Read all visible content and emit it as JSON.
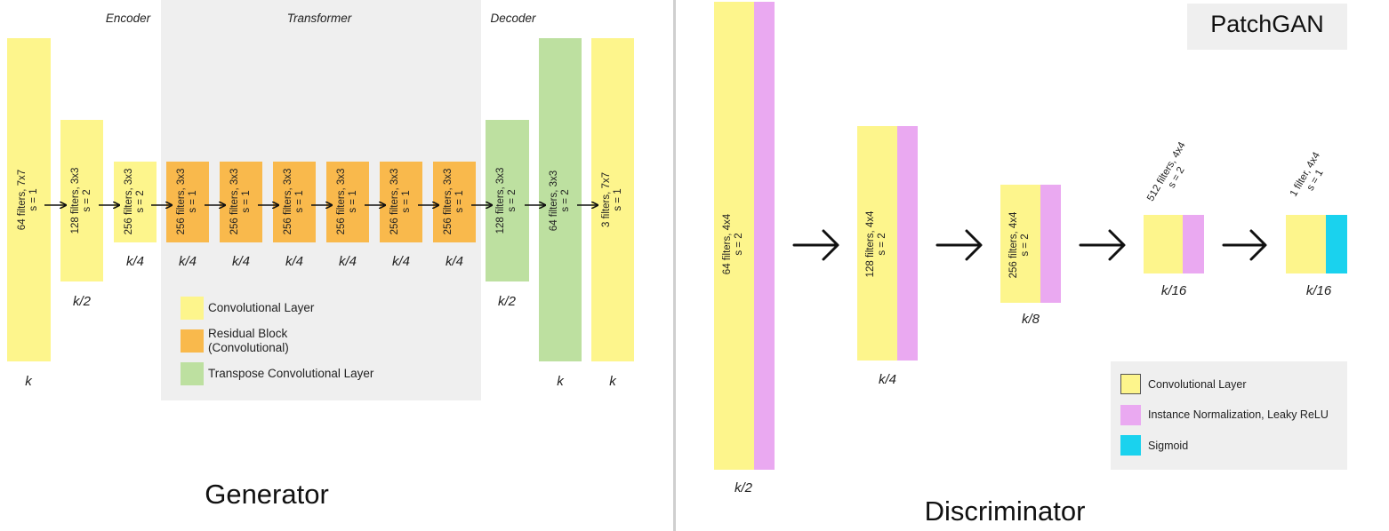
{
  "generator": {
    "title": "Generator",
    "sections": {
      "encoder": "Encoder",
      "transformer": "Transformer",
      "decoder": "Decoder"
    },
    "layers": [
      {
        "label": "64 filters, 7x7\ns = 1",
        "size": "k",
        "type": "conv"
      },
      {
        "label": "128 filters, 3x3\ns = 2",
        "size": "k/2",
        "type": "conv"
      },
      {
        "label": "256 filters, 3x3\ns = 2",
        "size": "k/4",
        "type": "conv"
      },
      {
        "label": "256 filters, 3x3\ns = 1",
        "size": "k/4",
        "type": "residual"
      },
      {
        "label": "256 filters, 3x3\ns = 1",
        "size": "k/4",
        "type": "residual"
      },
      {
        "label": "256 filters, 3x3\ns = 1",
        "size": "k/4",
        "type": "residual"
      },
      {
        "label": "256 filters, 3x3\ns = 1",
        "size": "k/4",
        "type": "residual"
      },
      {
        "label": "256 filters, 3x3\ns = 1",
        "size": "k/4",
        "type": "residual"
      },
      {
        "label": "256 filters, 3x3\ns = 1",
        "size": "k/4",
        "type": "residual"
      },
      {
        "label": "128 filters, 3x3\ns = 2",
        "size": "k/2",
        "type": "transpose"
      },
      {
        "label": "64 filters, 3x3\ns = 2",
        "size": "k",
        "type": "transpose"
      },
      {
        "label": "3 filters, 7x7\ns = 1",
        "size": "k",
        "type": "conv"
      }
    ],
    "legend": [
      {
        "label": "Convolutional Layer",
        "color": "#fdf58c"
      },
      {
        "label": "Residual Block\n(Convolutional)",
        "color": "#f9b94c"
      },
      {
        "label": "Transpose Convolutional Layer",
        "color": "#bde0a0"
      }
    ]
  },
  "discriminator": {
    "title": "Discriminator",
    "badge": "PatchGAN",
    "layers": [
      {
        "label": "64 filters, 4x4\ns = 2",
        "size": "k/2"
      },
      {
        "label": "128 filters, 4x4\ns = 2",
        "size": "k/4"
      },
      {
        "label": "256 filters, 4x4\ns = 2",
        "size": "k/8"
      },
      {
        "label": "512 filters, 4x4\ns = 2",
        "size": "k/16"
      },
      {
        "label": "1 filter, 4x4\ns = 1",
        "size": "k/16"
      }
    ],
    "legend": [
      {
        "label": "Convolutional Layer",
        "color": "#fdf58c"
      },
      {
        "label": "Instance Normalization, Leaky ReLU",
        "color": "#eaa9f1"
      },
      {
        "label": "Sigmoid",
        "color": "#1ad2ee"
      }
    ]
  },
  "colors": {
    "conv": "#fdf58c",
    "residual": "#f9b94c",
    "transpose": "#bde0a0",
    "norm": "#eaa9f1",
    "sigmoid": "#1ad2ee",
    "panel": "#efefef",
    "divider": "#cfcfcf"
  }
}
